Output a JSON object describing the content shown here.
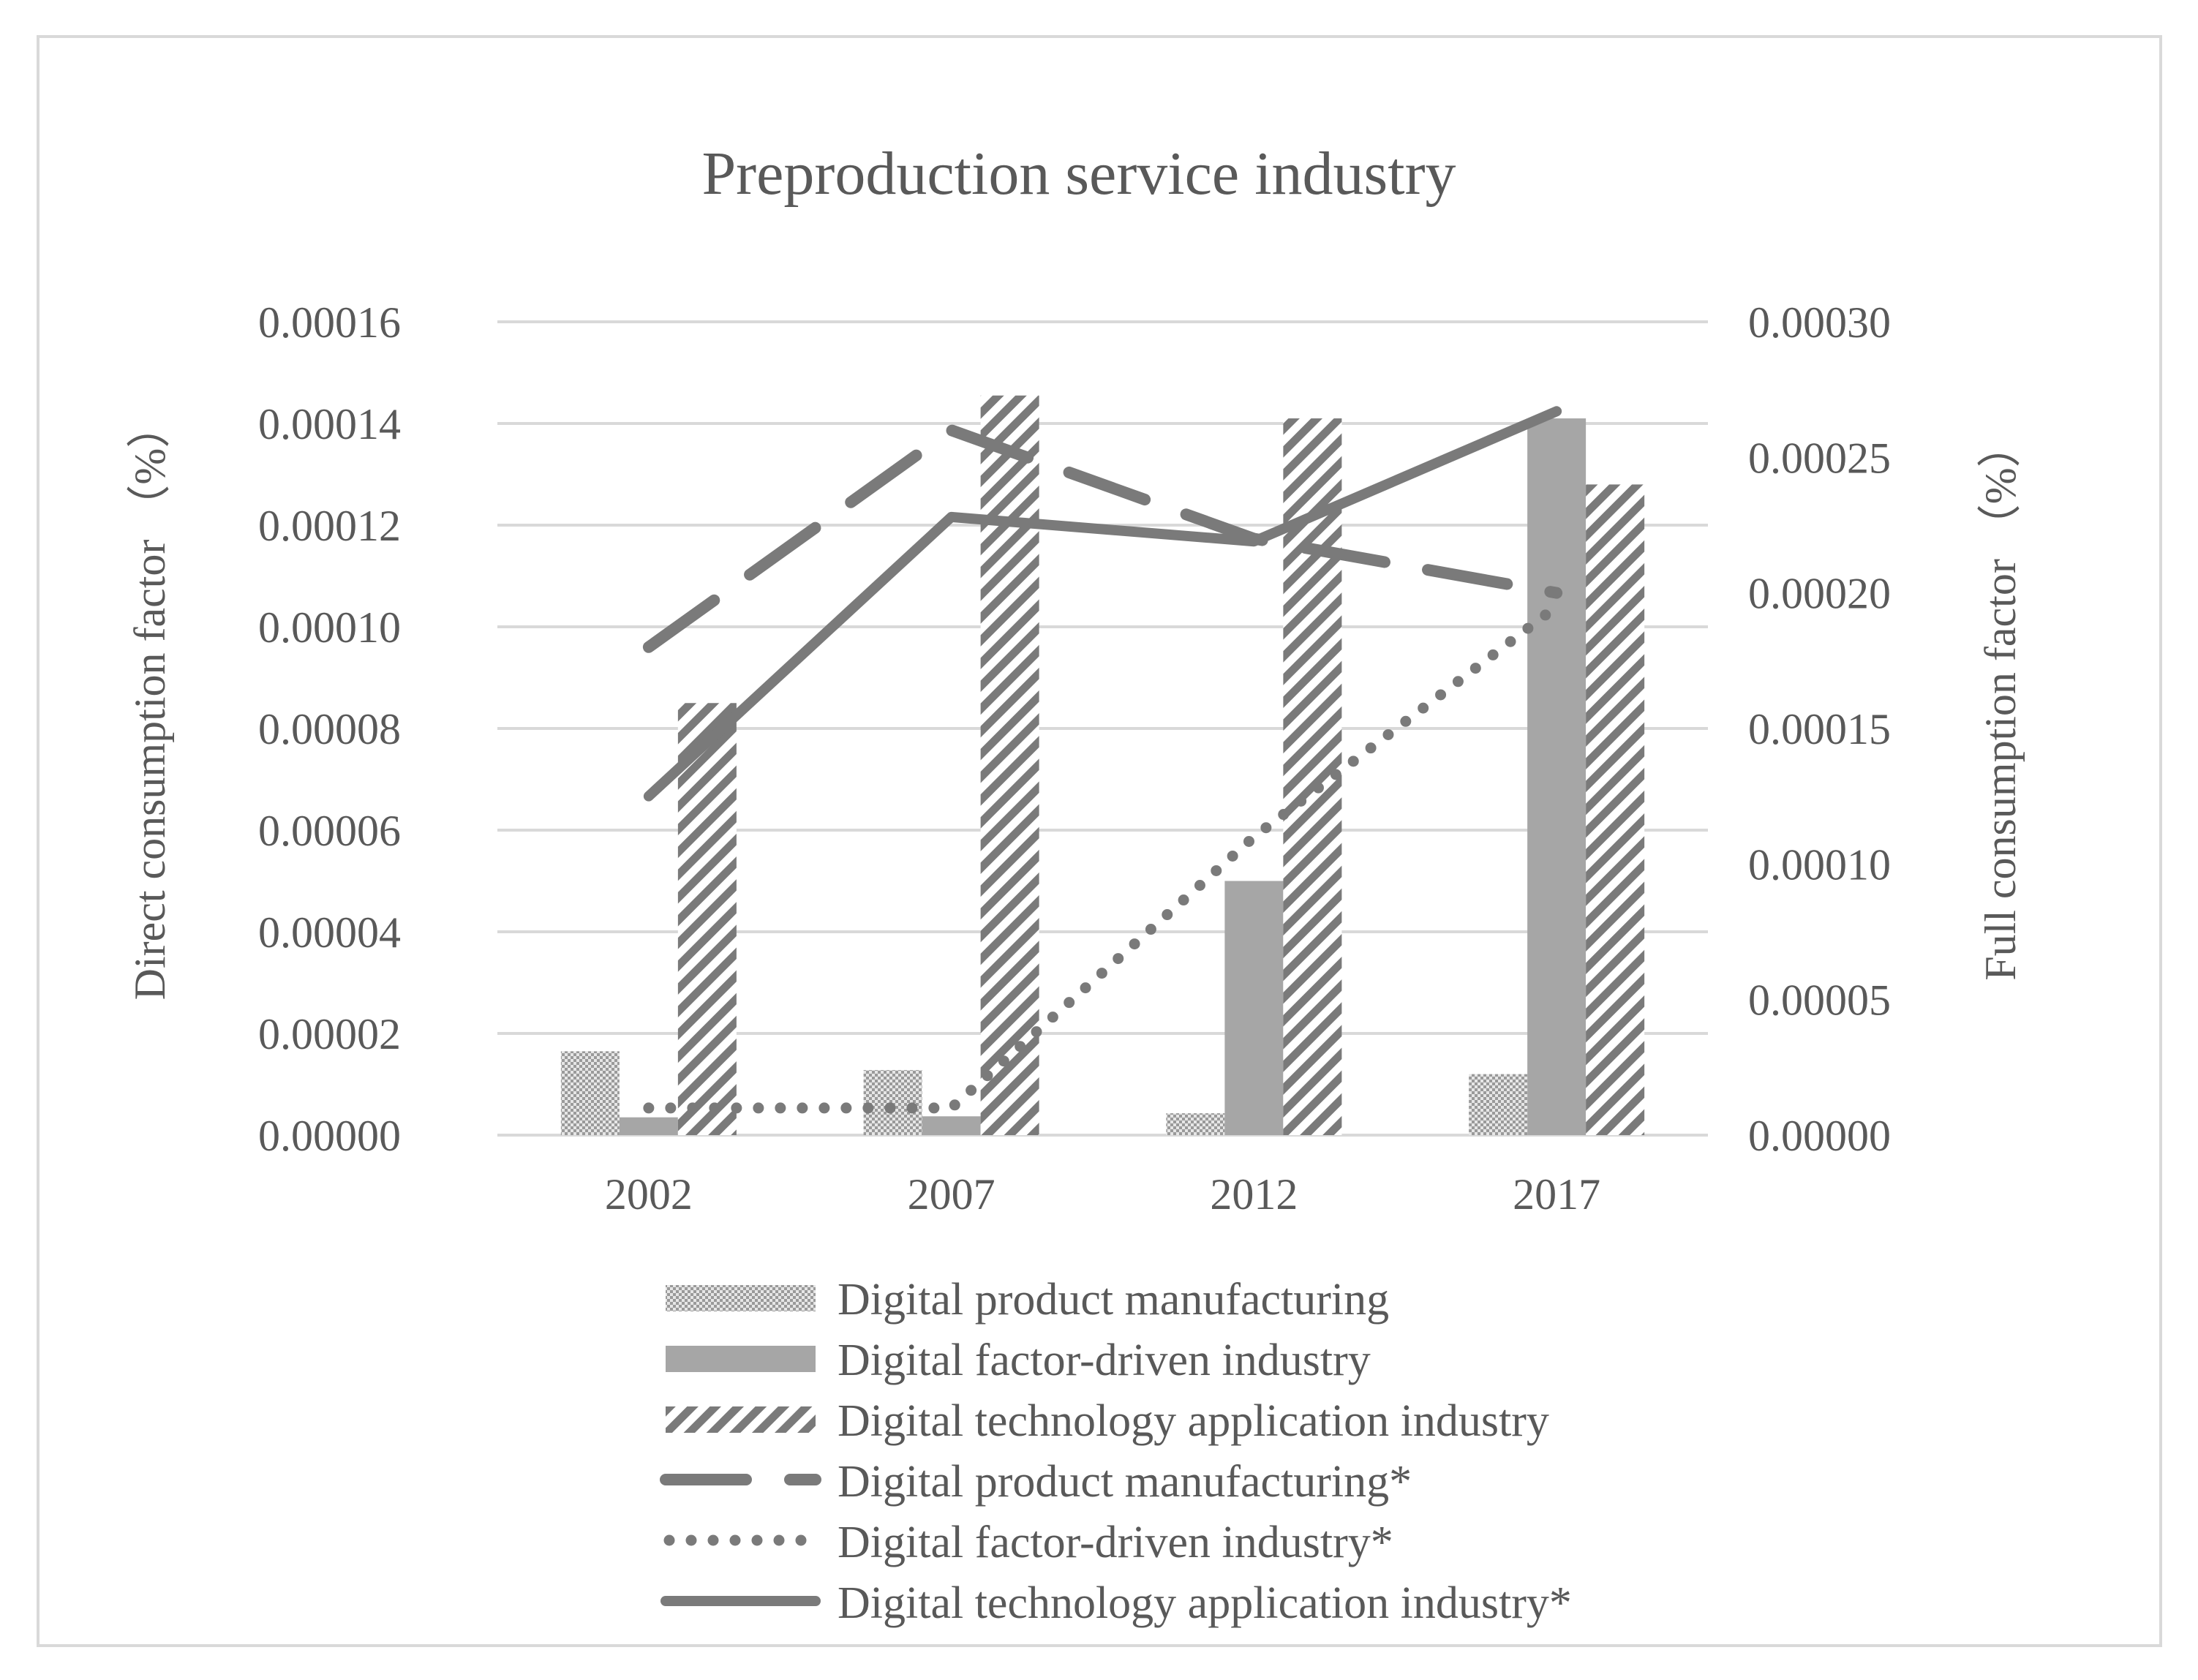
{
  "chart_data": {
    "type": "bar",
    "title": "Preproduction service industry",
    "categories": [
      "2002",
      "2007",
      "2012",
      "2017"
    ],
    "y_left": {
      "label": "Direct consumption factor （%）",
      "lim": [
        0,
        0.00016
      ],
      "ticks": [
        "0.00000",
        "0.00002",
        "0.00004",
        "0.00006",
        "0.00008",
        "0.00010",
        "0.00012",
        "0.00014",
        "0.00016"
      ]
    },
    "y_right": {
      "label": "Full consumption factor （%）",
      "lim": [
        0,
        0.0003
      ],
      "ticks": [
        "0.00000",
        "0.00005",
        "0.00010",
        "0.00015",
        "0.00020",
        "0.00025",
        "0.00030"
      ]
    },
    "grid": true,
    "legend_position": "bottom",
    "bar_series": [
      {
        "name": "Digital product manufacturing",
        "axis": "left",
        "values": [
          1.65e-05,
          1.28e-05,
          4.3e-06,
          1.2e-05
        ]
      },
      {
        "name": "Digital factor-driven industry",
        "axis": "left",
        "values": [
          3.5e-06,
          3.7e-06,
          5e-05,
          0.000141
        ]
      },
      {
        "name": "Digital technology application industry",
        "axis": "left",
        "values": [
          8.5e-05,
          0.0001455,
          0.000141,
          0.000128
        ]
      }
    ],
    "line_series": [
      {
        "name": "Digital product manufacturing*",
        "axis": "right",
        "style": "dashed",
        "values": [
          0.00018,
          0.00026,
          0.00022,
          0.0002
        ]
      },
      {
        "name": "Digital factor-driven industry*",
        "axis": "right",
        "style": "dotted",
        "values": [
          1e-05,
          1e-05,
          0.00011,
          0.000195
        ]
      },
      {
        "name": "Digital technology application industry*",
        "axis": "right",
        "style": "solid",
        "values": [
          0.000125,
          0.000228,
          0.000219,
          0.000267
        ]
      }
    ]
  }
}
